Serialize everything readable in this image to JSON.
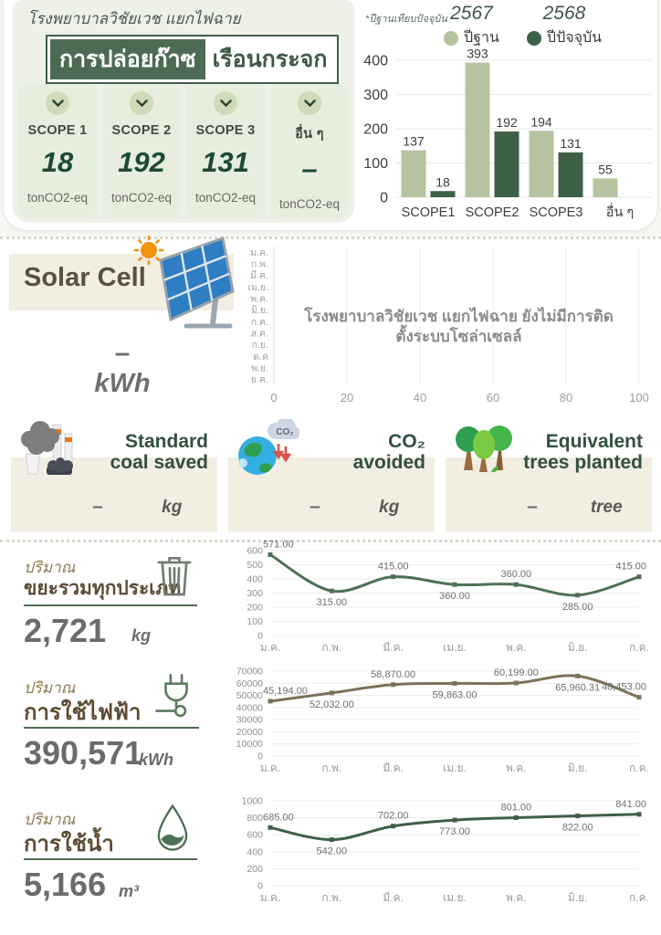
{
  "page": {
    "hospital_title": "โรงพยาบาลวิชัยเวช แยกไฟฉาย",
    "ghg_header_highlight": "การปล่อยก๊าซ",
    "ghg_header_rest": "เรือนกระจก"
  },
  "scopes": {
    "items": [
      {
        "label": "SCOPE 1",
        "value": "18",
        "unit": "tonCO2-eq"
      },
      {
        "label": "SCOPE 2",
        "value": "192",
        "unit": "tonCO2-eq"
      },
      {
        "label": "SCOPE 3",
        "value": "131",
        "unit": "tonCO2-eq"
      },
      {
        "label": "อื่น ๆ",
        "value": "–",
        "unit": "tonCO2-eq"
      }
    ]
  },
  "ghg_chart": {
    "note": "*ปีฐานเทียบปัจจุบัน",
    "legend": [
      {
        "year": "2567",
        "label": "ปีฐาน",
        "color": "#b6c3a0"
      },
      {
        "year": "2568",
        "label": "ปีปัจจุบัน",
        "color": "#3e6146"
      }
    ]
  },
  "solar": {
    "title": "Solar Cell",
    "value": "–",
    "unit": "kWh",
    "empty_message": "โรงพยาบาลวิชัยเวช แยกไฟฉาย ยังไม่มีการติดตั้งระบบโซล่าเซลล์"
  },
  "impact_cards": [
    {
      "title_line1": "Standard",
      "title_line2": "coal saved",
      "value": "–",
      "unit": "kg"
    },
    {
      "title_line1": "CO₂",
      "title_line2": "avoided",
      "value": "–",
      "unit": "kg"
    },
    {
      "title_line1": "Equivalent",
      "title_line2": "trees planted",
      "value": "–",
      "unit": "tree"
    }
  ],
  "metrics": [
    {
      "prefix": "ปริมาณ",
      "name": "ขยะรวมทุกประเภท",
      "value": "2,721",
      "unit": "kg"
    },
    {
      "prefix": "ปริมาณ",
      "name": "การใช้ไฟฟ้า",
      "value": "390,571",
      "unit": "kWh"
    },
    {
      "prefix": "ปริมาณ",
      "name": "การใช้น้ำ",
      "value": "5,166",
      "unit": "m³"
    }
  ],
  "chart_data": [
    {
      "id": "ghg",
      "type": "bar",
      "title": "การปล่อยก๊าซเรือนกระจก",
      "categories": [
        "SCOPE1",
        "SCOPE2",
        "SCOPE3",
        "อื่น ๆ"
      ],
      "series": [
        {
          "name": "ปีฐาน 2567",
          "color": "#b6c3a0",
          "values": [
            137,
            393,
            194,
            55
          ]
        },
        {
          "name": "ปีปัจจุบัน 2568",
          "color": "#3e6146",
          "values": [
            18,
            192,
            131,
            null
          ]
        }
      ],
      "ylim": [
        0,
        400
      ],
      "yticks": [
        0,
        100,
        200,
        300,
        400
      ],
      "grid": true,
      "legend_position": "top"
    },
    {
      "id": "solar",
      "type": "bar",
      "orientation": "horizontal",
      "title": "Solar Cell (kWh)",
      "categories": [
        "ม.ค.",
        "ก.พ.",
        "มี.ค.",
        "เม.ย.",
        "พ.ค.",
        "มิ.ย.",
        "ก.ค.",
        "ส.ค.",
        "ก.ย.",
        "ต.ค",
        "พ.ย.",
        "ธ.ค."
      ],
      "values": [],
      "xlim": [
        0,
        100
      ],
      "xticks": [
        0,
        20,
        40,
        60,
        80,
        100
      ],
      "grid": true,
      "empty": true
    },
    {
      "id": "waste",
      "type": "line",
      "title": "ปริมาณขยะรวมทุกประเภท (kg)",
      "x": [
        "ม.ค.",
        "ก.พ.",
        "มี.ค.",
        "เม.ย.",
        "พ.ค.",
        "มิ.ย.",
        "ก.ค."
      ],
      "values": [
        571,
        315,
        415,
        360,
        360,
        285,
        415
      ],
      "labels": [
        "571.00",
        "315.00",
        "415.00",
        "360.00",
        "360.00",
        "285.00",
        "415.00"
      ],
      "label_pos": [
        "above",
        "below",
        "above",
        "below",
        "above",
        "below",
        "above"
      ],
      "ylim": [
        0,
        600
      ],
      "yticks": [
        0,
        100,
        200,
        300,
        400,
        500,
        600
      ],
      "grid": true,
      "color": "#4e7155"
    },
    {
      "id": "electricity",
      "type": "line",
      "title": "ปริมาณการใช้ไฟฟ้า (kWh)",
      "x": [
        "ม.ค.",
        "ก.พ.",
        "มี.ค.",
        "เม.ย.",
        "พ.ค.",
        "มิ.ย.",
        "ก.ค."
      ],
      "values": [
        45194,
        52032,
        58870,
        59863,
        60199,
        65960.31,
        48453
      ],
      "labels": [
        "45,194.00",
        "52,032.00",
        "58,870.00",
        "59,863.00",
        "60,199.00",
        "65,960.31",
        "48,453.00"
      ],
      "label_pos": [
        "above",
        "below",
        "above",
        "below",
        "above",
        "below",
        "above"
      ],
      "ylim": [
        0,
        70000
      ],
      "yticks": [
        0,
        10000,
        20000,
        30000,
        40000,
        50000,
        60000,
        70000
      ],
      "grid": true,
      "color": "#7d7258"
    },
    {
      "id": "water",
      "type": "line",
      "title": "ปริมาณการใช้น้ำ (m³)",
      "x": [
        "ม.ค.",
        "ก.พ.",
        "มี.ค.",
        "เม.ย.",
        "พ.ค.",
        "มิ.ย.",
        "ก.ค."
      ],
      "values": [
        685,
        542,
        702,
        773,
        801,
        822,
        841
      ],
      "labels": [
        "685.00",
        "542.00",
        "702.00",
        "773.00",
        "801.00",
        "822.00",
        "841.00"
      ],
      "label_pos": [
        "above",
        "below",
        "above",
        "below",
        "above",
        "below",
        "above"
      ],
      "ylim": [
        0,
        1000
      ],
      "yticks": [
        0,
        200,
        400,
        600,
        800,
        1000
      ],
      "grid": true,
      "color": "#3f5f49"
    }
  ]
}
